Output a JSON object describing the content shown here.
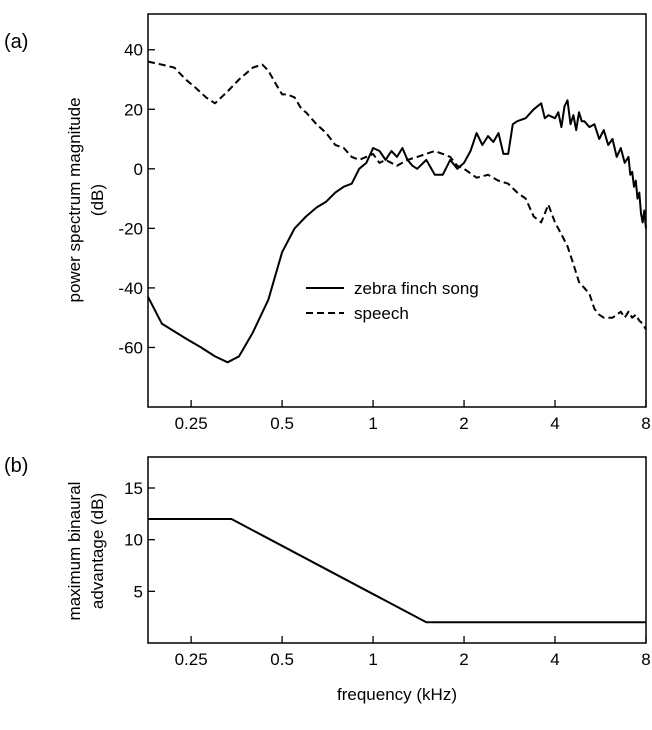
{
  "chart_data": [
    {
      "panel_label": "(a)",
      "type": "line",
      "xscale": "log2",
      "xlim": [
        0.18,
        8
      ],
      "ylim": [
        -80,
        52
      ],
      "xticks": [
        0.25,
        0.5,
        1,
        2,
        4,
        8
      ],
      "xtick_labels": [
        "0.25",
        "0.5",
        "1",
        "2",
        "4",
        "8"
      ],
      "yticks": [
        -60,
        -40,
        -20,
        0,
        20,
        40
      ],
      "ytick_labels": [
        "-60",
        "-40",
        "-20",
        "0",
        "20",
        "40"
      ],
      "xlabel": "",
      "ylabel_lines": [
        "power spectrum magnitude",
        "(dB)"
      ],
      "legend_position": "center",
      "series": [
        {
          "name": "zebra finch song",
          "style": "solid",
          "x": [
            0.18,
            0.2,
            0.24,
            0.27,
            0.3,
            0.33,
            0.36,
            0.4,
            0.45,
            0.5,
            0.55,
            0.6,
            0.65,
            0.7,
            0.75,
            0.8,
            0.85,
            0.9,
            0.95,
            1.0,
            1.05,
            1.1,
            1.15,
            1.2,
            1.25,
            1.3,
            1.35,
            1.4,
            1.5,
            1.6,
            1.7,
            1.8,
            1.9,
            2.0,
            2.1,
            2.2,
            2.3,
            2.4,
            2.5,
            2.6,
            2.7,
            2.8,
            2.9,
            3.0,
            3.2,
            3.4,
            3.6,
            3.7,
            3.8,
            4.0,
            4.1,
            4.2,
            4.3,
            4.4,
            4.5,
            4.6,
            4.7,
            4.8,
            4.9,
            5.0,
            5.2,
            5.4,
            5.6,
            5.8,
            6.0,
            6.2,
            6.4,
            6.6,
            6.8,
            7.0,
            7.1,
            7.2,
            7.3,
            7.4,
            7.5,
            7.6,
            7.7,
            7.8,
            7.9,
            8.0
          ],
          "y": [
            -43,
            -52,
            -57,
            -60,
            -63,
            -65,
            -63,
            -55,
            -44,
            -28,
            -20,
            -16,
            -13,
            -11,
            -8,
            -6,
            -5,
            0,
            2,
            7,
            6,
            3,
            6,
            4,
            7,
            3,
            1,
            0,
            3,
            -2,
            -2,
            3,
            0,
            2,
            6,
            12,
            8,
            11,
            9,
            12,
            5,
            5,
            15,
            16,
            17,
            20,
            22,
            17,
            18,
            17,
            19,
            14,
            21,
            23,
            15,
            18,
            13,
            19,
            16,
            16,
            14,
            15,
            10,
            13,
            8,
            10,
            4,
            7,
            2,
            4,
            -2,
            -1,
            -6,
            -4,
            -10,
            -8,
            -15,
            -18,
            -14,
            -20
          ]
        },
        {
          "name": "speech",
          "style": "dashed",
          "x": [
            0.18,
            0.2,
            0.22,
            0.24,
            0.26,
            0.28,
            0.3,
            0.33,
            0.36,
            0.4,
            0.43,
            0.45,
            0.48,
            0.5,
            0.52,
            0.55,
            0.58,
            0.6,
            0.65,
            0.7,
            0.75,
            0.8,
            0.85,
            0.9,
            1.0,
            1.05,
            1.1,
            1.2,
            1.3,
            1.4,
            1.5,
            1.6,
            1.7,
            1.8,
            1.9,
            2.0,
            2.2,
            2.4,
            2.6,
            2.8,
            3.0,
            3.2,
            3.4,
            3.6,
            3.7,
            3.8,
            4.0,
            4.2,
            4.4,
            4.6,
            4.8,
            5.0,
            5.2,
            5.4,
            5.6,
            5.8,
            6.0,
            6.2,
            6.4,
            6.6,
            6.8,
            7.0,
            7.2,
            7.4,
            7.6,
            7.8,
            8.0
          ],
          "y": [
            36,
            35,
            34,
            30,
            27,
            24,
            22,
            26,
            30,
            34,
            35,
            33,
            28,
            25,
            25,
            24,
            20,
            19,
            15,
            12,
            8,
            7,
            4,
            3,
            5,
            2,
            3,
            1,
            3,
            4,
            5,
            6,
            5,
            4,
            1,
            0,
            -3,
            -2,
            -4,
            -5,
            -8,
            -10,
            -16,
            -18,
            -15,
            -12,
            -18,
            -22,
            -26,
            -32,
            -38,
            -40,
            -42,
            -47,
            -49,
            -50,
            -50,
            -50,
            -49,
            -48,
            -50,
            -48,
            -50,
            -49,
            -51,
            -52,
            -54
          ]
        }
      ]
    },
    {
      "panel_label": "(b)",
      "type": "line",
      "xscale": "log2",
      "xlim": [
        0.18,
        8
      ],
      "ylim": [
        0,
        18
      ],
      "xticks": [
        0.25,
        0.5,
        1,
        2,
        4,
        8
      ],
      "xtick_labels": [
        "0.25",
        "0.5",
        "1",
        "2",
        "4",
        "8"
      ],
      "yticks": [
        5,
        10,
        15
      ],
      "ytick_labels": [
        "5",
        "10",
        "15"
      ],
      "xlabel": "frequency (kHz)",
      "ylabel_lines": [
        "maximum binaural",
        "advantage (dB)"
      ],
      "series": [
        {
          "style": "solid",
          "x": [
            0.18,
            0.34,
            1.5,
            8
          ],
          "y": [
            12,
            12,
            2,
            2
          ]
        }
      ]
    }
  ]
}
